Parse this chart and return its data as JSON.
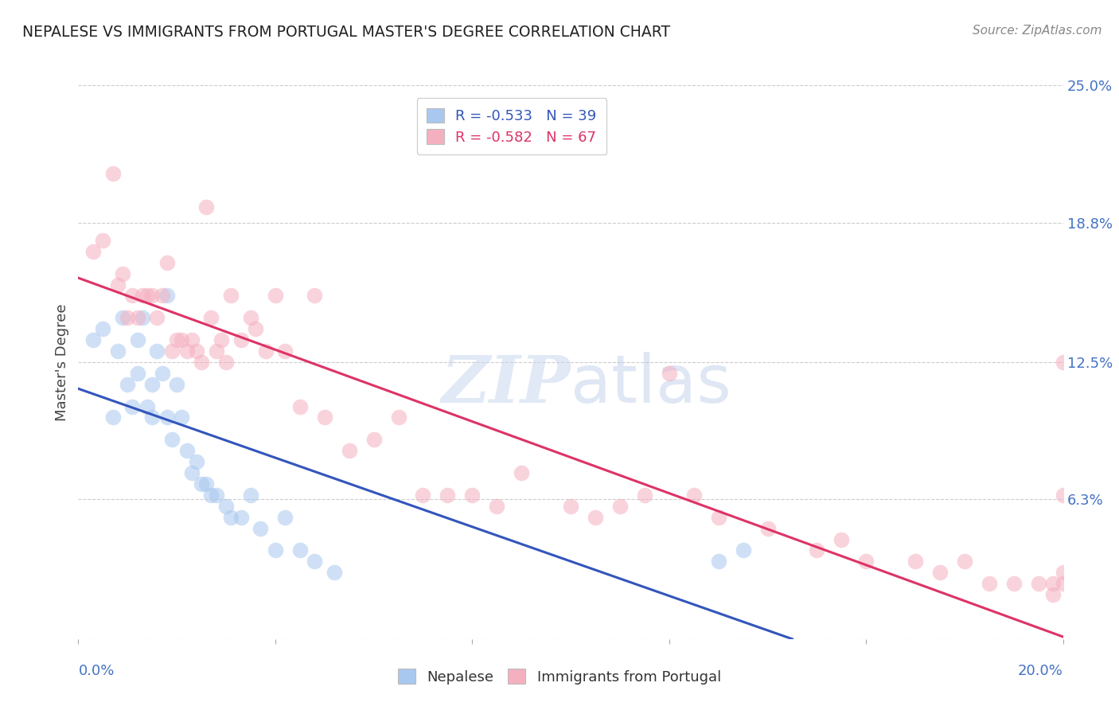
{
  "title": "NEPALESE VS IMMIGRANTS FROM PORTUGAL MASTER'S DEGREE CORRELATION CHART",
  "source": "Source: ZipAtlas.com",
  "ylabel": "Master's Degree",
  "xlim": [
    0.0,
    0.2
  ],
  "ylim": [
    0.0,
    0.25
  ],
  "x_tick_positions": [
    0.0,
    0.04,
    0.08,
    0.12,
    0.16,
    0.2
  ],
  "y_tick_positions": [
    0.0,
    0.063,
    0.125,
    0.188,
    0.25
  ],
  "y_tick_labels": [
    "",
    "6.3%",
    "12.5%",
    "18.8%",
    "25.0%"
  ],
  "nepalese_R": -0.533,
  "nepalese_N": 39,
  "portugal_R": -0.582,
  "portugal_N": 67,
  "nepalese_color": "#A8C8F0",
  "portugal_color": "#F5B0C0",
  "nepalese_line_color": "#3355BB",
  "portugal_line_color": "#DD3366",
  "nepalese_line_x0": 0.0,
  "nepalese_line_y0": 0.113,
  "nepalese_line_x1": 0.145,
  "nepalese_line_y1": 0.0,
  "portugal_line_x0": 0.0,
  "portugal_line_y0": 0.163,
  "portugal_line_x1": 0.2,
  "portugal_line_y1": 0.001,
  "nepalese_x": [
    0.003,
    0.005,
    0.007,
    0.008,
    0.009,
    0.01,
    0.011,
    0.012,
    0.012,
    0.013,
    0.014,
    0.015,
    0.015,
    0.016,
    0.017,
    0.018,
    0.018,
    0.019,
    0.02,
    0.021,
    0.022,
    0.023,
    0.024,
    0.025,
    0.026,
    0.027,
    0.028,
    0.03,
    0.031,
    0.033,
    0.035,
    0.037,
    0.04,
    0.042,
    0.045,
    0.048,
    0.052,
    0.13,
    0.135
  ],
  "nepalese_y": [
    0.135,
    0.14,
    0.1,
    0.13,
    0.145,
    0.115,
    0.105,
    0.135,
    0.12,
    0.145,
    0.105,
    0.115,
    0.1,
    0.13,
    0.12,
    0.155,
    0.1,
    0.09,
    0.115,
    0.1,
    0.085,
    0.075,
    0.08,
    0.07,
    0.07,
    0.065,
    0.065,
    0.06,
    0.055,
    0.055,
    0.065,
    0.05,
    0.04,
    0.055,
    0.04,
    0.035,
    0.03,
    0.035,
    0.04
  ],
  "portugal_x": [
    0.003,
    0.005,
    0.007,
    0.008,
    0.009,
    0.01,
    0.011,
    0.012,
    0.013,
    0.014,
    0.015,
    0.016,
    0.017,
    0.018,
    0.019,
    0.02,
    0.021,
    0.022,
    0.023,
    0.024,
    0.025,
    0.026,
    0.027,
    0.028,
    0.029,
    0.03,
    0.031,
    0.033,
    0.035,
    0.036,
    0.038,
    0.04,
    0.042,
    0.045,
    0.048,
    0.05,
    0.055,
    0.06,
    0.065,
    0.07,
    0.075,
    0.08,
    0.085,
    0.09,
    0.1,
    0.105,
    0.11,
    0.115,
    0.12,
    0.125,
    0.13,
    0.14,
    0.15,
    0.155,
    0.16,
    0.17,
    0.175,
    0.18,
    0.185,
    0.19,
    0.195,
    0.198,
    0.198,
    0.2,
    0.2,
    0.2,
    0.2
  ],
  "portugal_y": [
    0.175,
    0.18,
    0.21,
    0.16,
    0.165,
    0.145,
    0.155,
    0.145,
    0.155,
    0.155,
    0.155,
    0.145,
    0.155,
    0.17,
    0.13,
    0.135,
    0.135,
    0.13,
    0.135,
    0.13,
    0.125,
    0.195,
    0.145,
    0.13,
    0.135,
    0.125,
    0.155,
    0.135,
    0.145,
    0.14,
    0.13,
    0.155,
    0.13,
    0.105,
    0.155,
    0.1,
    0.085,
    0.09,
    0.1,
    0.065,
    0.065,
    0.065,
    0.06,
    0.075,
    0.06,
    0.055,
    0.06,
    0.065,
    0.12,
    0.065,
    0.055,
    0.05,
    0.04,
    0.045,
    0.035,
    0.035,
    0.03,
    0.035,
    0.025,
    0.025,
    0.025,
    0.02,
    0.025,
    0.125,
    0.065,
    0.025,
    0.03
  ]
}
